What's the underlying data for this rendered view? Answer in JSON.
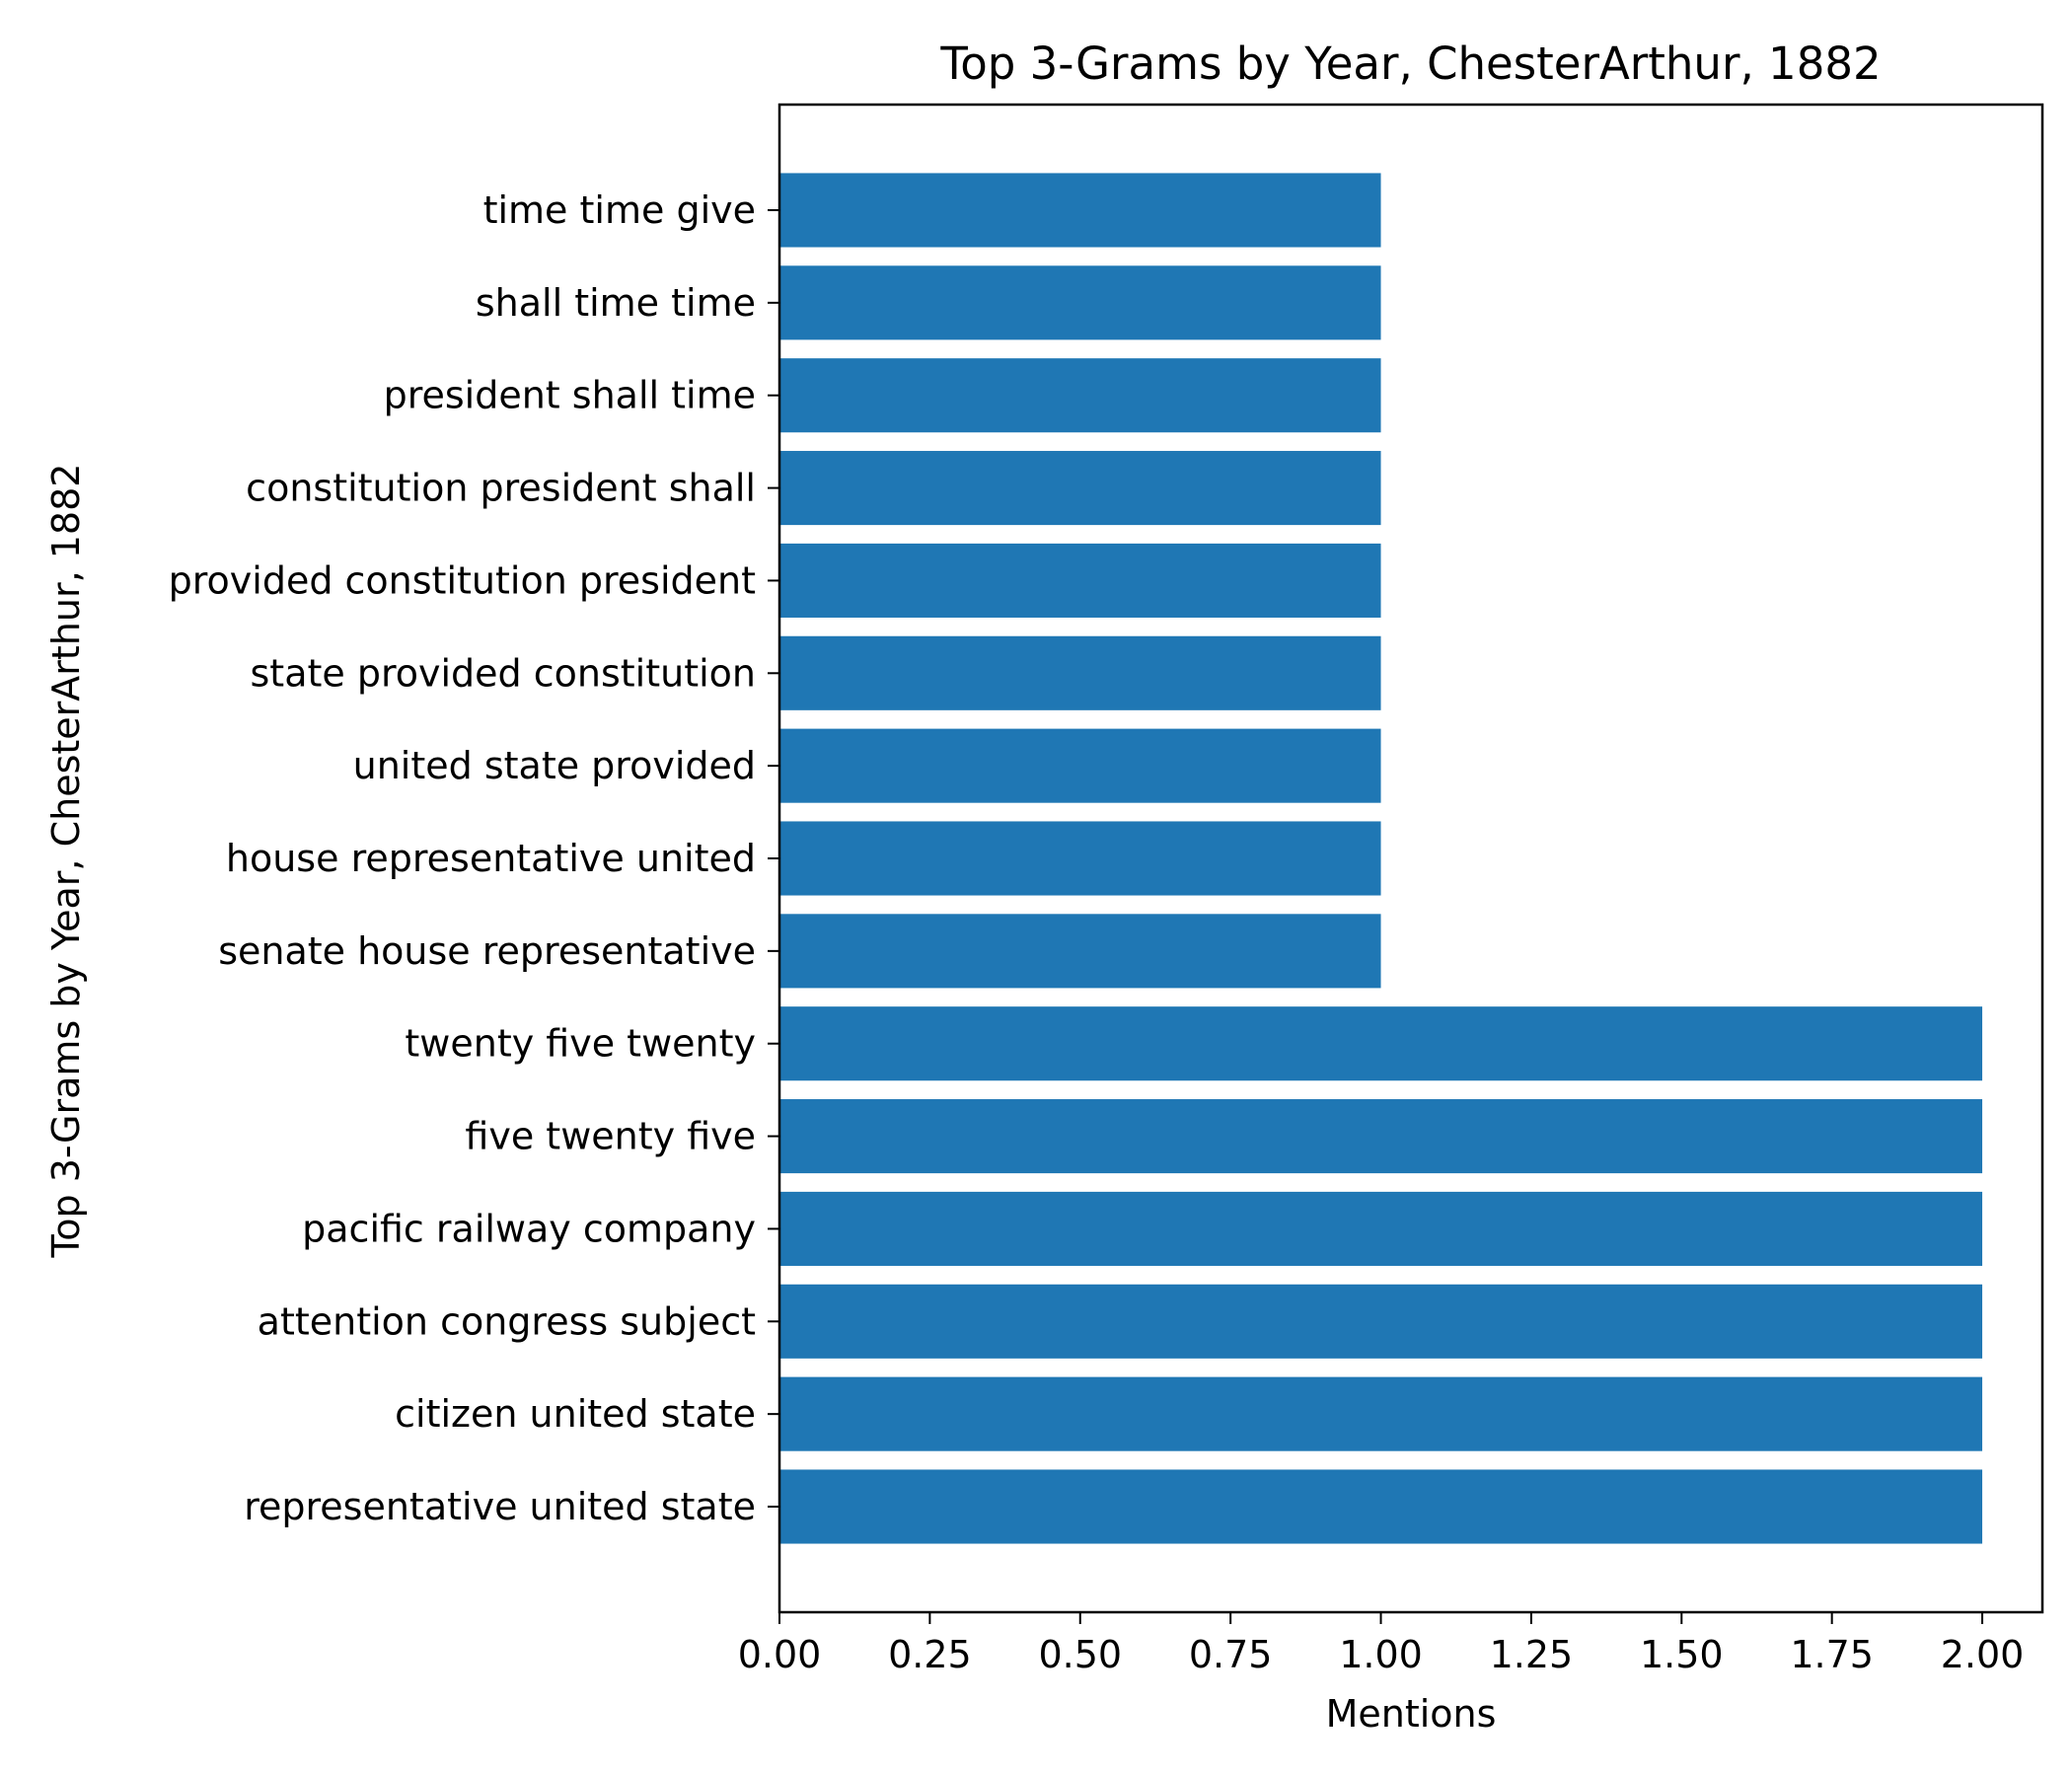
{
  "chart_data": {
    "type": "bar",
    "orientation": "horizontal",
    "title": "Top 3-Grams by Year, ChesterArthur, 1882",
    "xlabel": "Mentions",
    "ylabel": "Top 3-Grams by Year, ChesterArthur, 1882",
    "xlim": [
      0,
      2.1
    ],
    "x_ticks": [
      "0.00",
      "0.25",
      "0.50",
      "0.75",
      "1.00",
      "1.25",
      "1.50",
      "1.75",
      "2.00"
    ],
    "x_tick_values": [
      0,
      0.25,
      0.5,
      0.75,
      1.0,
      1.25,
      1.5,
      1.75,
      2.0
    ],
    "grid": false,
    "bar_color": "#1f77b4",
    "categories": [
      "time time give",
      "shall time time",
      "president shall time",
      "constitution president shall",
      "provided constitution president",
      "state provided constitution",
      "united state provided",
      "house representative united",
      "senate house representative",
      "twenty five twenty",
      "five twenty five",
      "pacific railway company",
      "attention congress subject",
      "citizen united state",
      "representative united state"
    ],
    "values": [
      1,
      1,
      1,
      1,
      1,
      1,
      1,
      1,
      1,
      2,
      2,
      2,
      2,
      2,
      2
    ]
  }
}
